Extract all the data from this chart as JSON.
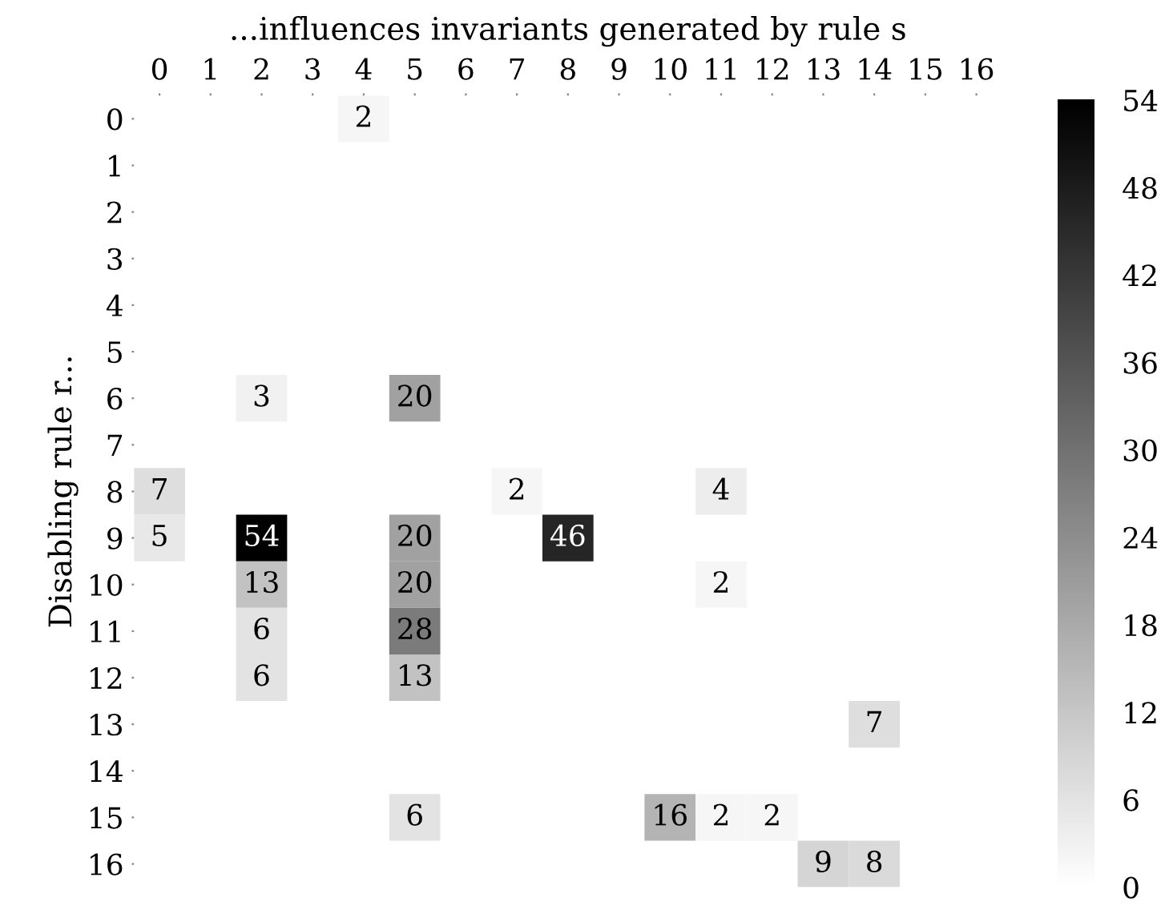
{
  "chart_data": {
    "type": "heatmap",
    "xlabel": "...influences invariants generated by rule s",
    "ylabel": "Disabling rule r...",
    "categories": [
      "0",
      "1",
      "2",
      "3",
      "4",
      "5",
      "6",
      "7",
      "8",
      "9",
      "10",
      "11",
      "12",
      "13",
      "14",
      "15",
      "16"
    ],
    "y_categories": [
      "0",
      "1",
      "2",
      "3",
      "4",
      "5",
      "6",
      "7",
      "8",
      "9",
      "10",
      "11",
      "12",
      "13",
      "14",
      "15",
      "16"
    ],
    "cells": [
      [
        null,
        null,
        null,
        null,
        2,
        null,
        null,
        null,
        null,
        null,
        null,
        null,
        null,
        null,
        null,
        null,
        null
      ],
      [
        null,
        null,
        null,
        null,
        null,
        null,
        null,
        null,
        null,
        null,
        null,
        null,
        null,
        null,
        null,
        null,
        null
      ],
      [
        null,
        null,
        null,
        null,
        null,
        null,
        null,
        null,
        null,
        null,
        null,
        null,
        null,
        null,
        null,
        null,
        null
      ],
      [
        null,
        null,
        null,
        null,
        null,
        null,
        null,
        null,
        null,
        null,
        null,
        null,
        null,
        null,
        null,
        null,
        null
      ],
      [
        null,
        null,
        null,
        null,
        null,
        null,
        null,
        null,
        null,
        null,
        null,
        null,
        null,
        null,
        null,
        null,
        null
      ],
      [
        null,
        null,
        null,
        null,
        null,
        null,
        null,
        null,
        null,
        null,
        null,
        null,
        null,
        null,
        null,
        null,
        null
      ],
      [
        null,
        null,
        3,
        null,
        null,
        20,
        null,
        null,
        null,
        null,
        null,
        null,
        null,
        null,
        null,
        null,
        null
      ],
      [
        null,
        null,
        null,
        null,
        null,
        null,
        null,
        null,
        null,
        null,
        null,
        null,
        null,
        null,
        null,
        null,
        null
      ],
      [
        7,
        null,
        null,
        null,
        null,
        null,
        null,
        2,
        null,
        null,
        null,
        4,
        null,
        null,
        null,
        null,
        null
      ],
      [
        5,
        null,
        54,
        null,
        null,
        20,
        null,
        null,
        46,
        null,
        null,
        null,
        null,
        null,
        null,
        null,
        null
      ],
      [
        null,
        null,
        13,
        null,
        null,
        20,
        null,
        null,
        null,
        null,
        null,
        2,
        null,
        null,
        null,
        null,
        null
      ],
      [
        null,
        null,
        6,
        null,
        null,
        28,
        null,
        null,
        null,
        null,
        null,
        null,
        null,
        null,
        null,
        null,
        null
      ],
      [
        null,
        null,
        6,
        null,
        null,
        13,
        null,
        null,
        null,
        null,
        null,
        null,
        null,
        null,
        null,
        null,
        null
      ],
      [
        null,
        null,
        null,
        null,
        null,
        null,
        null,
        null,
        null,
        null,
        null,
        null,
        null,
        null,
        7,
        null,
        null
      ],
      [
        null,
        null,
        null,
        null,
        null,
        null,
        null,
        null,
        null,
        null,
        null,
        null,
        null,
        null,
        null,
        null,
        null
      ],
      [
        null,
        null,
        null,
        null,
        null,
        6,
        null,
        null,
        null,
        null,
        16,
        2,
        2,
        null,
        null,
        null,
        null
      ],
      [
        null,
        null,
        null,
        null,
        null,
        null,
        null,
        null,
        null,
        null,
        null,
        null,
        null,
        9,
        8,
        null,
        null
      ]
    ],
    "data_labels": true,
    "clim": [
      0,
      54
    ],
    "cticks": [
      0,
      6,
      12,
      18,
      24,
      30,
      36,
      42,
      48,
      54
    ]
  }
}
